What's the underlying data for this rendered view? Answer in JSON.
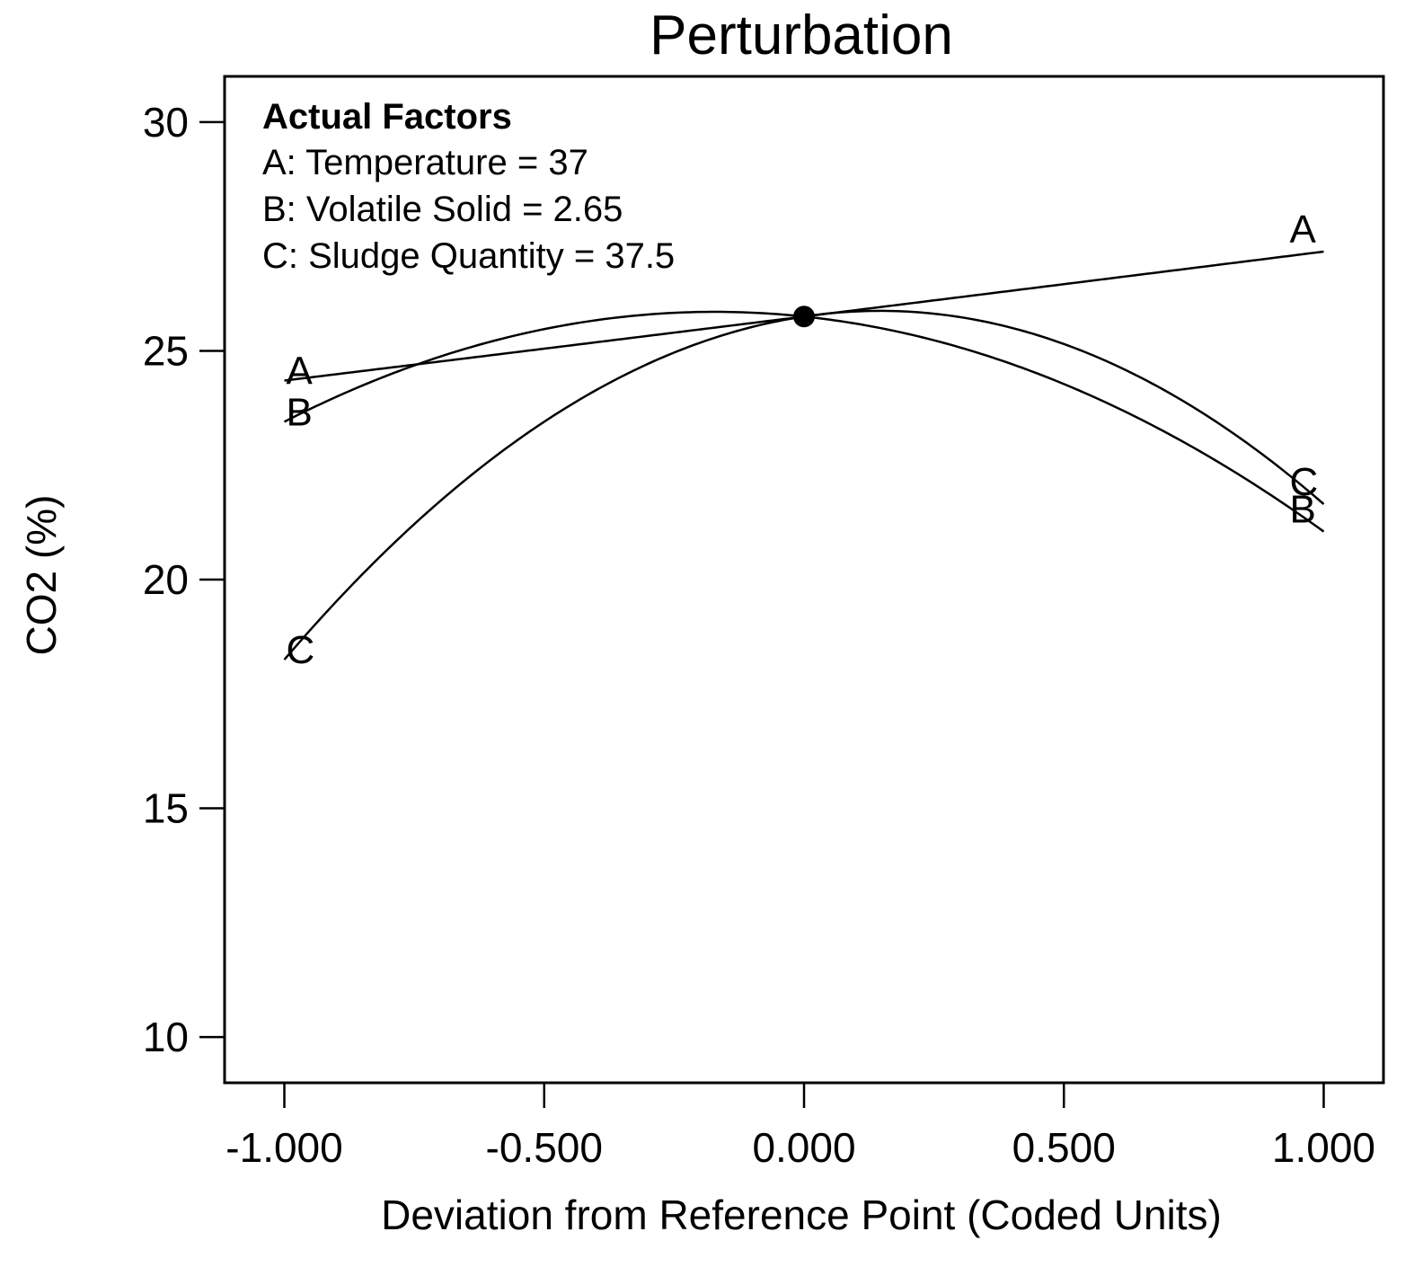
{
  "chart_data": {
    "type": "line",
    "title": "Perturbation",
    "xlabel": "Deviation from Reference Point (Coded Units)",
    "ylabel": "CO2 (%)",
    "xlim": [
      -1.115,
      1.115
    ],
    "ylim": [
      9,
      31
    ],
    "x_ticks": [
      -1.0,
      -0.5,
      0.0,
      0.5,
      1.0
    ],
    "x_tick_labels": [
      "-1.000",
      "-0.500",
      "0.000",
      "0.500",
      "1.000"
    ],
    "y_ticks": [
      10,
      15,
      20,
      25,
      30
    ],
    "y_tick_labels": [
      "10",
      "15",
      "20",
      "25",
      "30"
    ],
    "actual_factors": {
      "heading": "Actual Factors",
      "lines": [
        "A: Temperature = 37",
        "B: Volatile Solid = 2.65",
        "C: Sludge Quantity = 37.5"
      ]
    },
    "reference_point": {
      "x": 0.0,
      "y": 25.75
    },
    "series": [
      {
        "name": "A",
        "x": [
          -1.0,
          -0.5,
          0.0,
          0.5,
          1.0
        ],
        "y": [
          24.35,
          25.03,
          25.75,
          26.46,
          27.17
        ]
      },
      {
        "name": "B",
        "x": [
          -1.0,
          -0.5,
          0.0,
          0.5,
          1.0
        ],
        "y": [
          23.45,
          25.37,
          25.75,
          24.65,
          21.05
        ]
      },
      {
        "name": "C",
        "x": [
          -1.0,
          -0.5,
          0.0,
          0.5,
          1.0
        ],
        "y": [
          18.25,
          23.61,
          25.75,
          25.13,
          21.65
        ]
      }
    ],
    "curve_labels": [
      {
        "text": "A",
        "series": "A",
        "end": "left"
      },
      {
        "text": "B",
        "series": "B",
        "end": "left"
      },
      {
        "text": "C",
        "series": "C",
        "end": "left"
      },
      {
        "text": "A",
        "series": "A",
        "end": "right"
      },
      {
        "text": "C",
        "series": "C",
        "end": "right"
      },
      {
        "text": "B",
        "series": "B",
        "end": "right"
      }
    ],
    "colors": {
      "line": "#000000",
      "background": "#ffffff"
    }
  }
}
